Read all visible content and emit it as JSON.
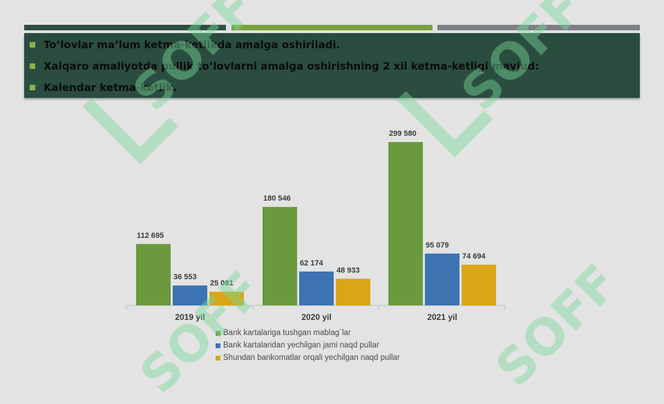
{
  "bullets": [
    "To’lovlar ma’lum ketma-ketlikda amalga oshiriladi.",
    "Xalqaro amaliyotda pullik to’lovlarni amalga oshirishning 2 xil ketma-ketligi mavjud:",
    "Kalendar ketma-ketlik."
  ],
  "watermark_text": "SOFF",
  "colors": {
    "series1": "#6b9a3e",
    "series2": "#3c74b3",
    "series3": "#d8a617",
    "bullet_box": "#2a4d40"
  },
  "chart_data": {
    "type": "bar",
    "categories": [
      "2019 yil",
      "2020 yil",
      "2021 yil"
    ],
    "series": [
      {
        "name": "Bank kartalariga tushgan mablag`lar",
        "values": [
          112695,
          180546,
          299580
        ],
        "labels": [
          "112 695",
          "180 546",
          "299 580"
        ]
      },
      {
        "name": "Bank kartalaridan yechilgan jami naqd pullar",
        "values": [
          36553,
          62174,
          95079
        ],
        "labels": [
          "36 553",
          "62 174",
          "95 079"
        ]
      },
      {
        "name": "Shundan bankomatlar orqali yechilgan naqd pullar",
        "values": [
          25081,
          48933,
          74694
        ],
        "labels": [
          "25 081",
          "48 933",
          "74 694"
        ]
      }
    ],
    "title": "",
    "xlabel": "",
    "ylabel": "",
    "ylim": [
      0,
      300000
    ],
    "grid": false,
    "legend": "bottom"
  }
}
